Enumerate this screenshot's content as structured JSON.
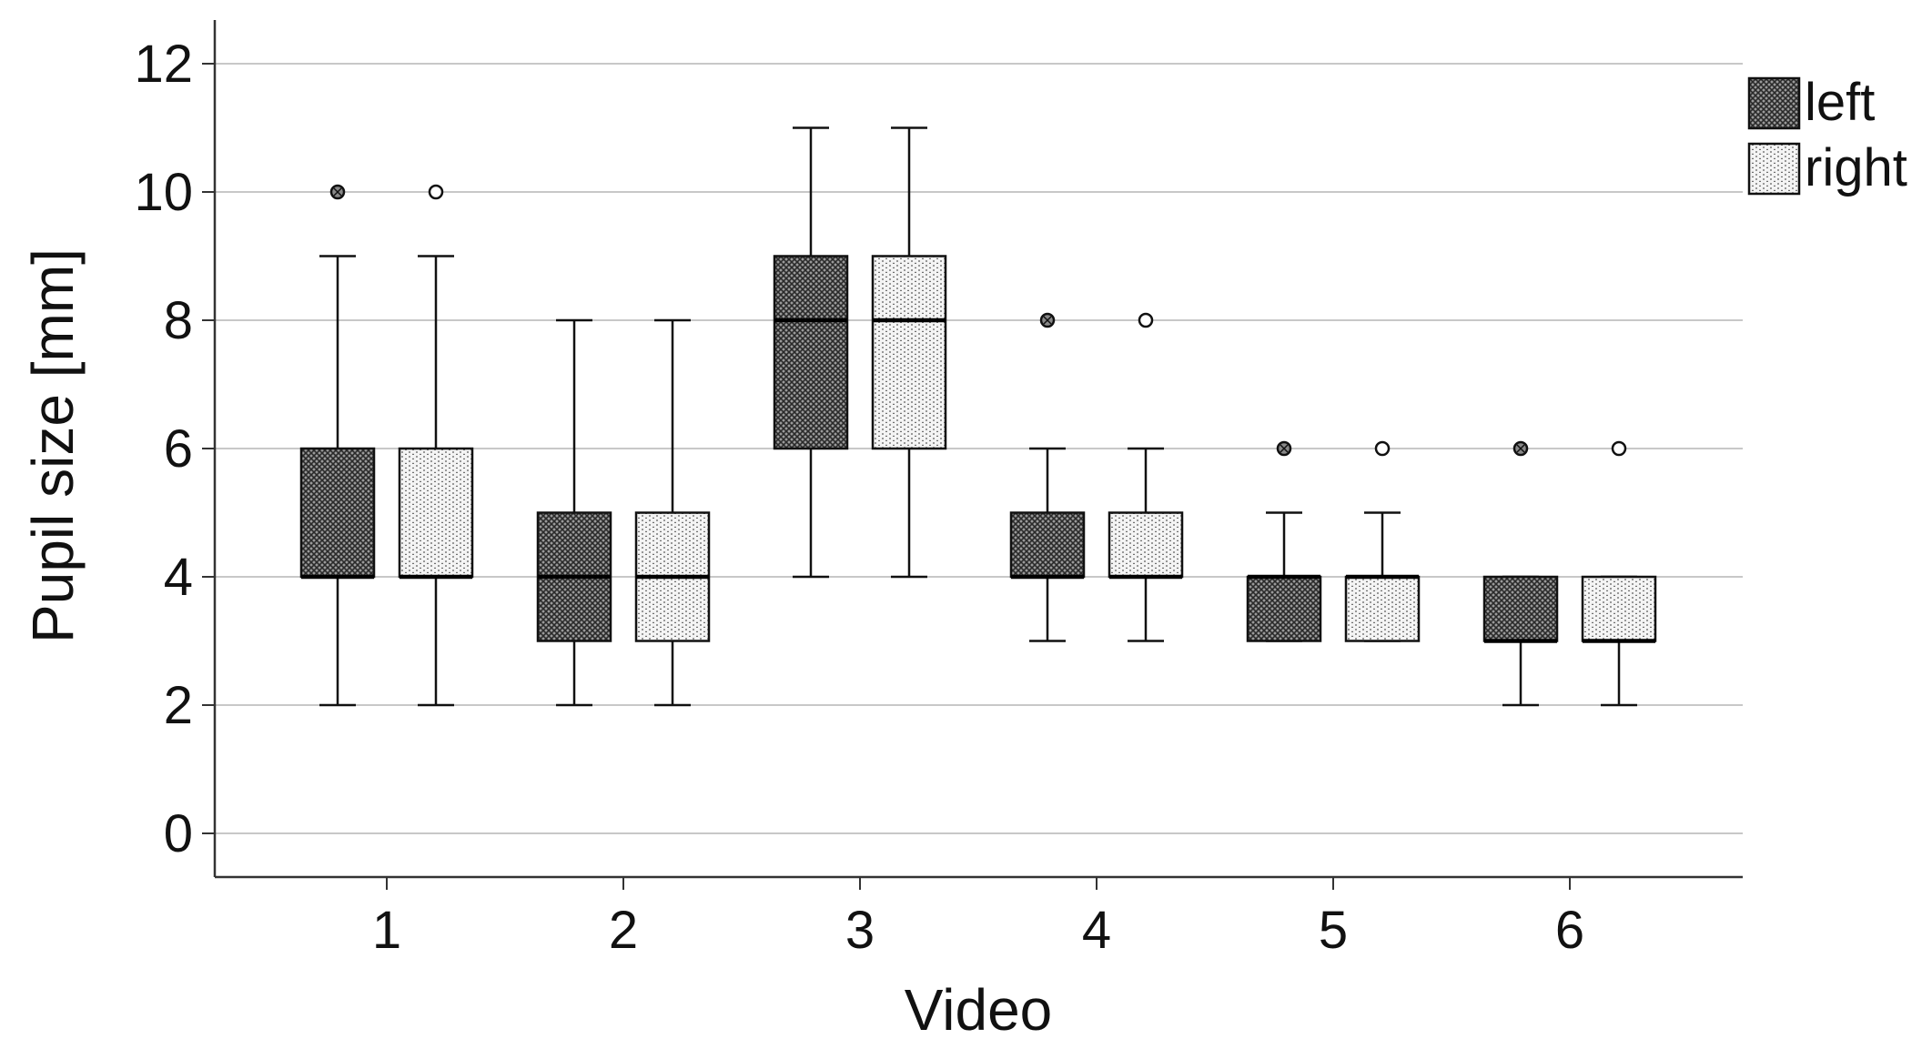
{
  "chart_data": {
    "type": "boxplot",
    "title": "",
    "xlabel": "Video",
    "ylabel": "Pupil size [mm]",
    "ylim": [
      -0.6,
      12.7
    ],
    "yticks": [
      "0",
      "2",
      "4",
      "6",
      "8",
      "10",
      "12"
    ],
    "ytick_values": [
      0,
      2,
      4,
      6,
      8,
      10,
      12
    ],
    "grid": "horizontal",
    "legend_position": "top-right",
    "categories": [
      "1",
      "2",
      "3",
      "4",
      "5",
      "6"
    ],
    "series": [
      {
        "name": "left",
        "pattern": "crosshatch",
        "boxes": [
          {
            "min": 2,
            "q1": 4,
            "median": 4,
            "q3": 6,
            "max": 9,
            "outliers": [
              10
            ]
          },
          {
            "min": 2,
            "q1": 3,
            "median": 4,
            "q3": 5,
            "max": 8,
            "outliers": []
          },
          {
            "min": 4,
            "q1": 6,
            "median": 8,
            "q3": 9,
            "max": 11,
            "outliers": []
          },
          {
            "min": 3,
            "q1": 4,
            "median": 4,
            "q3": 5,
            "max": 6,
            "outliers": [
              8
            ]
          },
          {
            "min": 3,
            "q1": 3,
            "median": 4,
            "q3": 4,
            "max": 5,
            "outliers": [
              6
            ]
          },
          {
            "min": 2,
            "q1": 3,
            "median": 3,
            "q3": 4,
            "max": 4,
            "outliers": [
              6
            ]
          }
        ]
      },
      {
        "name": "right",
        "pattern": "dotted",
        "boxes": [
          {
            "min": 2,
            "q1": 4,
            "median": 4,
            "q3": 6,
            "max": 9,
            "outliers": [
              10
            ]
          },
          {
            "min": 2,
            "q1": 3,
            "median": 4,
            "q3": 5,
            "max": 8,
            "outliers": []
          },
          {
            "min": 4,
            "q1": 6,
            "median": 8,
            "q3": 9,
            "max": 11,
            "outliers": []
          },
          {
            "min": 3,
            "q1": 4,
            "median": 4,
            "q3": 5,
            "max": 6,
            "outliers": [
              8
            ]
          },
          {
            "min": 3,
            "q1": 3,
            "median": 4,
            "q3": 4,
            "max": 5,
            "outliers": [
              6
            ]
          },
          {
            "min": 2,
            "q1": 3,
            "median": 3,
            "q3": 4,
            "max": 4,
            "outliers": [
              6
            ]
          }
        ]
      }
    ],
    "colors": {
      "grid": "#c8c8c8",
      "axis": "#333333",
      "box_stroke": "#111111",
      "left_fill": "#8a8a8a",
      "right_fill": "#f2f2f2"
    }
  }
}
